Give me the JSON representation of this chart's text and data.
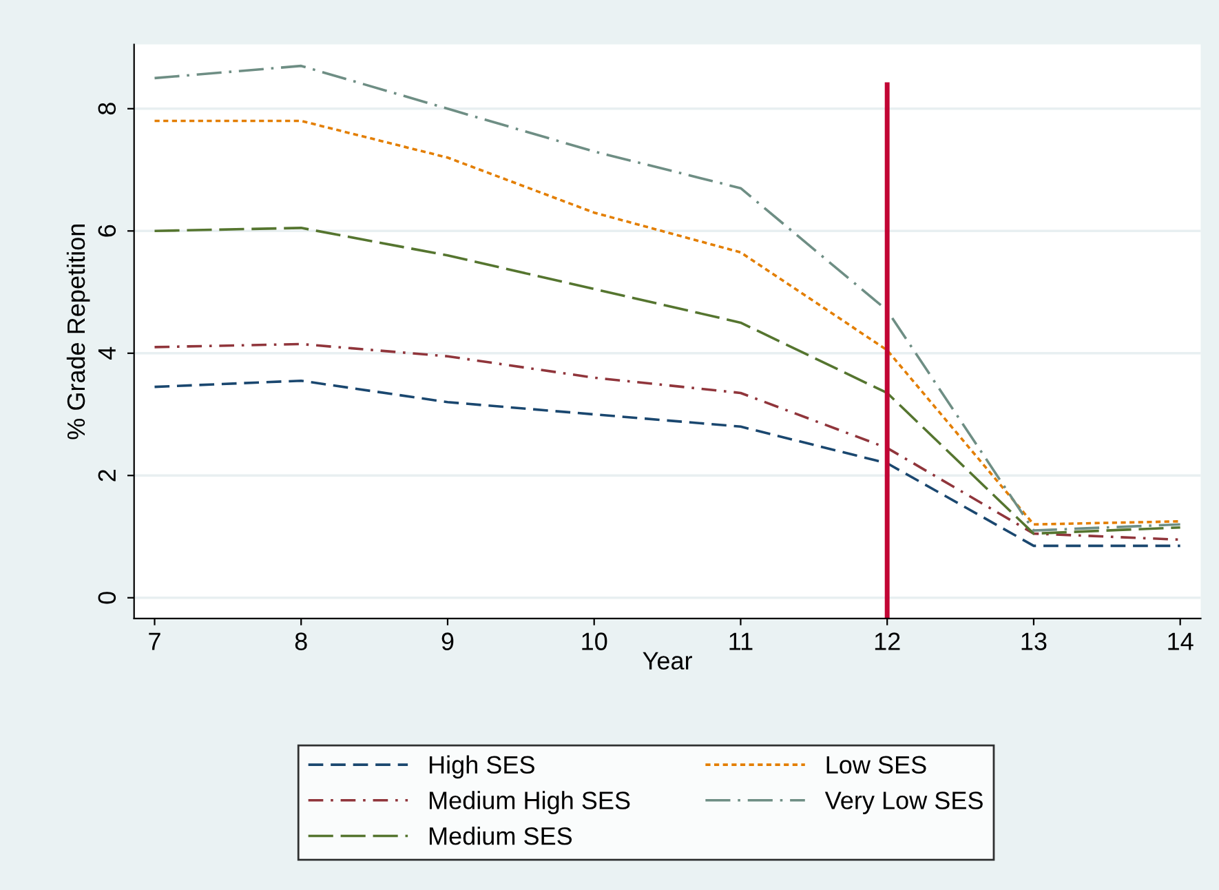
{
  "chart_data": {
    "type": "line",
    "xlabel": "Year",
    "ylabel": "% Grade Repetition",
    "x": [
      7,
      8,
      9,
      10,
      11,
      12,
      13,
      14
    ],
    "series": [
      {
        "name": "High SES",
        "color": "#1a476f",
        "line_style": "dashed",
        "values": [
          3.45,
          3.55,
          3.2,
          3.0,
          2.8,
          2.2,
          0.85,
          0.85
        ]
      },
      {
        "name": "Medium High SES",
        "color": "#90353b",
        "line_style": "dashdot",
        "values": [
          4.1,
          4.15,
          3.95,
          3.6,
          3.35,
          2.45,
          1.05,
          0.95
        ]
      },
      {
        "name": "Medium SES",
        "color": "#55752f",
        "line_style": "longdash",
        "values": [
          6.0,
          6.05,
          5.6,
          5.05,
          4.5,
          3.35,
          1.05,
          1.15
        ]
      },
      {
        "name": "Low SES",
        "color": "#e37e00",
        "line_style": "dotted",
        "values": [
          7.8,
          7.8,
          7.2,
          6.3,
          5.65,
          4.05,
          1.2,
          1.25
        ]
      },
      {
        "name": "Very Low SES",
        "color": "#6e8e84",
        "line_style": "longdashdot",
        "values": [
          8.5,
          8.7,
          8.0,
          7.3,
          6.7,
          4.7,
          1.1,
          1.2
        ]
      }
    ],
    "xlim": [
      6.86,
      14.14
    ],
    "ylim": [
      -0.34,
      9.05
    ],
    "xticks": [
      7,
      8,
      9,
      10,
      11,
      12,
      13,
      14
    ],
    "yticks": [
      0,
      2,
      4,
      6,
      8
    ],
    "ref_lines": [
      {
        "axis": "x",
        "value": 12,
        "color": "#c10534",
        "line_style": "solid"
      }
    ],
    "grid": "y",
    "legend": "bottom",
    "marker": "none"
  }
}
